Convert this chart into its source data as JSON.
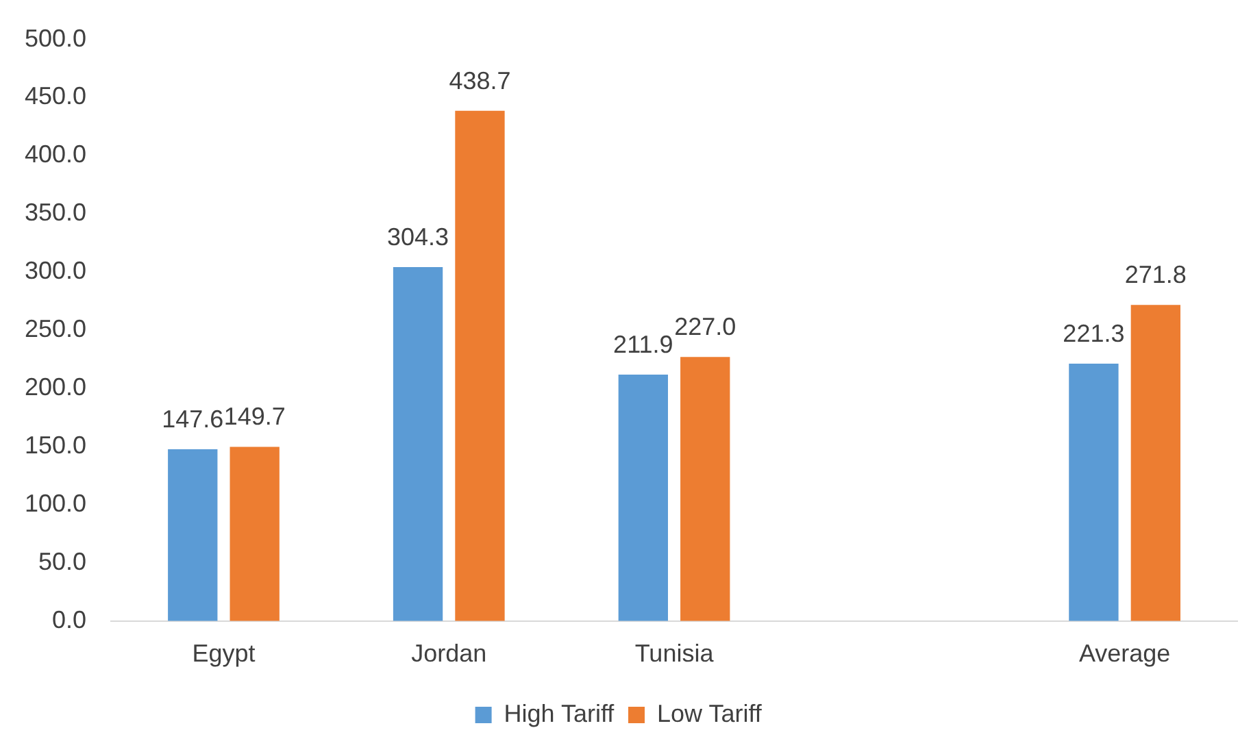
{
  "chart_data": {
    "type": "bar",
    "categories": [
      "Egypt",
      "Jordan",
      "Tunisia",
      null,
      "Average"
    ],
    "series": [
      {
        "name": "High Tariff",
        "color": "#5b9bd5",
        "values": [
          147.6,
          304.3,
          211.9,
          null,
          221.3
        ],
        "value_labels": [
          "147.6",
          "304.3",
          "211.9",
          null,
          "221.3"
        ]
      },
      {
        "name": "Low Tariff",
        "color": "#ed7d31",
        "values": [
          149.7,
          438.7,
          227.0,
          null,
          271.8
        ],
        "value_labels": [
          "149.7",
          "438.7",
          "227.0",
          null,
          "271.8"
        ]
      }
    ],
    "ylim": [
      0,
      500
    ],
    "yticks": [
      {
        "value": 0,
        "label": "0.0"
      },
      {
        "value": 50,
        "label": "50.0"
      },
      {
        "value": 100,
        "label": "100.0"
      },
      {
        "value": 150,
        "label": "150.0"
      },
      {
        "value": 200,
        "label": "200.0"
      },
      {
        "value": 250,
        "label": "250.0"
      },
      {
        "value": 300,
        "label": "300.0"
      },
      {
        "value": 350,
        "label": "350.0"
      },
      {
        "value": 400,
        "label": "400.0"
      },
      {
        "value": 450,
        "label": "450.0"
      },
      {
        "value": 500,
        "label": "500.0"
      }
    ],
    "grid": false,
    "legend": "bottom"
  }
}
